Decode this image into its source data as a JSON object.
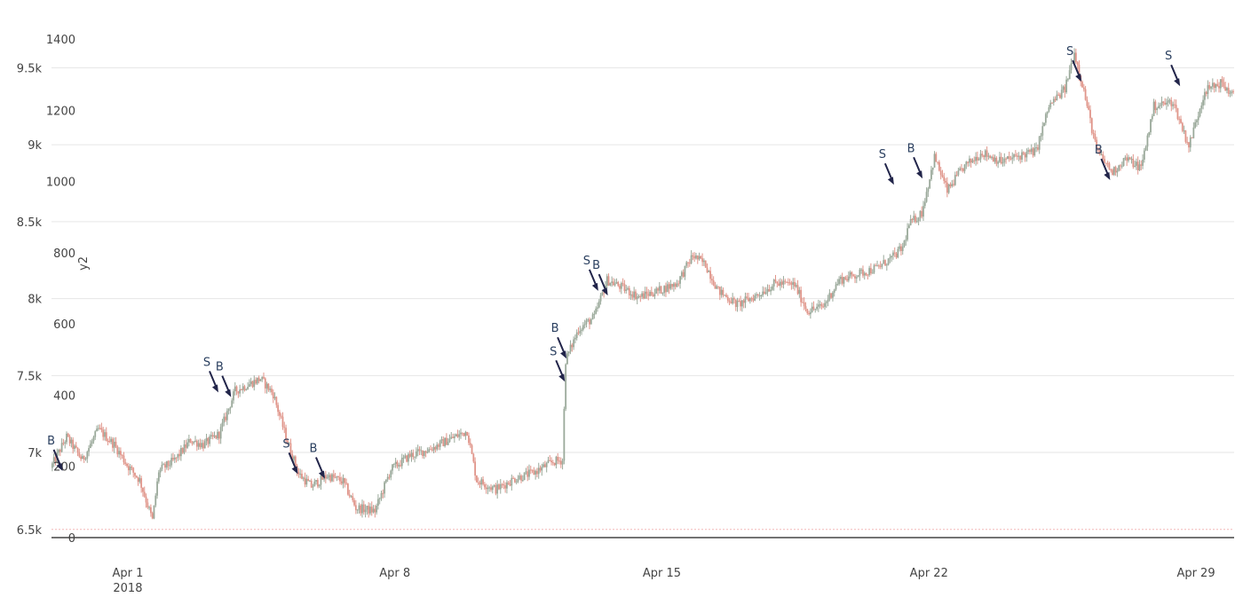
{
  "chart_data": {
    "type": "candlestick",
    "title": "",
    "colors": {
      "increasing": "#9aa99a",
      "decreasing": "#e0958a",
      "marker": "#22254a",
      "grid": "#e6e6e6",
      "baseline": "#444444",
      "reference_line": "#f4b8b8"
    },
    "x_axis": {
      "range": [
        "2018-03-30",
        "2018-04-30"
      ],
      "ticks": [
        {
          "date": "2018-04-01",
          "label": "Apr 1",
          "sublabel": "2018"
        },
        {
          "date": "2018-04-08",
          "label": "Apr 8",
          "sublabel": ""
        },
        {
          "date": "2018-04-15",
          "label": "Apr 15",
          "sublabel": ""
        },
        {
          "date": "2018-04-22",
          "label": "Apr 22",
          "sublabel": ""
        },
        {
          "date": "2018-04-29",
          "label": "Apr 29",
          "sublabel": ""
        }
      ]
    },
    "y_axis_price": {
      "range": [
        6470,
        9750
      ],
      "ticks": [
        {
          "value": 6500,
          "label": "6.5k"
        },
        {
          "value": 7000,
          "label": "7k"
        },
        {
          "value": 7500,
          "label": "7.5k"
        },
        {
          "value": 8000,
          "label": "8k"
        },
        {
          "value": 8500,
          "label": "8.5k"
        },
        {
          "value": 9000,
          "label": "9k"
        },
        {
          "value": 9500,
          "label": "9.5k"
        }
      ]
    },
    "y_axis_volume": {
      "label": "y2",
      "range": [
        0,
        1400
      ],
      "ticks": [
        {
          "value": 0,
          "label": "0"
        },
        {
          "value": 200,
          "label": "200"
        },
        {
          "value": 400,
          "label": "400"
        },
        {
          "value": 600,
          "label": "600"
        },
        {
          "value": 800,
          "label": "800"
        },
        {
          "value": 1000,
          "label": "1000"
        },
        {
          "value": 1200,
          "label": "1200"
        },
        {
          "value": 1400,
          "label": "1400"
        }
      ]
    },
    "price_path": [
      [
        "2018-03-30T00:00",
        6900
      ],
      [
        "2018-03-30T10:00",
        7100
      ],
      [
        "2018-03-30T20:00",
        6950
      ],
      [
        "2018-03-31T06:00",
        7150
      ],
      [
        "2018-03-31T16:00",
        7050
      ],
      [
        "2018-04-01T00:00",
        6920
      ],
      [
        "2018-04-01T08:00",
        6820
      ],
      [
        "2018-04-01T16:00",
        6560
      ],
      [
        "2018-04-01T20:00",
        6880
      ],
      [
        "2018-04-02T06:00",
        6950
      ],
      [
        "2018-04-02T16:00",
        7080
      ],
      [
        "2018-04-03T00:00",
        7050
      ],
      [
        "2018-04-03T10:00",
        7120
      ],
      [
        "2018-04-03T20:00",
        7400
      ],
      [
        "2018-04-04T04:00",
        7440
      ],
      [
        "2018-04-04T12:00",
        7480
      ],
      [
        "2018-04-04T20:00",
        7380
      ],
      [
        "2018-04-05T04:00",
        7100
      ],
      [
        "2018-04-05T12:00",
        6860
      ],
      [
        "2018-04-05T20:00",
        6780
      ],
      [
        "2018-04-06T06:00",
        6850
      ],
      [
        "2018-04-06T16:00",
        6810
      ],
      [
        "2018-04-07T00:00",
        6640
      ],
      [
        "2018-04-07T12:00",
        6620
      ],
      [
        "2018-04-07T22:00",
        6890
      ],
      [
        "2018-04-08T10:00",
        6980
      ],
      [
        "2018-04-08T22:00",
        7020
      ],
      [
        "2018-04-09T10:00",
        7080
      ],
      [
        "2018-04-09T22:00",
        7140
      ],
      [
        "2018-04-10T04:00",
        6820
      ],
      [
        "2018-04-10T16:00",
        6760
      ],
      [
        "2018-04-11T04:00",
        6830
      ],
      [
        "2018-04-11T16:00",
        6870
      ],
      [
        "2018-04-12T04:00",
        6940
      ],
      [
        "2018-04-12T10:00",
        6950
      ],
      [
        "2018-04-12T12:00",
        7600
      ],
      [
        "2018-04-12T20:00",
        7800
      ],
      [
        "2018-04-13T06:00",
        7880
      ],
      [
        "2018-04-13T14:00",
        8120
      ],
      [
        "2018-04-13T22:00",
        8080
      ],
      [
        "2018-04-14T10:00",
        8010
      ],
      [
        "2018-04-14T22:00",
        8050
      ],
      [
        "2018-04-15T10:00",
        8100
      ],
      [
        "2018-04-15T20:00",
        8280
      ],
      [
        "2018-04-16T04:00",
        8220
      ],
      [
        "2018-04-16T12:00",
        8050
      ],
      [
        "2018-04-17T00:00",
        7960
      ],
      [
        "2018-04-17T12:00",
        8020
      ],
      [
        "2018-04-18T00:00",
        8100
      ],
      [
        "2018-04-18T12:00",
        8090
      ],
      [
        "2018-04-18T20:00",
        7920
      ],
      [
        "2018-04-19T06:00",
        7950
      ],
      [
        "2018-04-19T16:00",
        8120
      ],
      [
        "2018-04-20T04:00",
        8160
      ],
      [
        "2018-04-20T16:00",
        8200
      ],
      [
        "2018-04-21T02:00",
        8270
      ],
      [
        "2018-04-21T08:00",
        8330
      ],
      [
        "2018-04-21T12:00",
        8480
      ],
      [
        "2018-04-21T20:00",
        8560
      ],
      [
        "2018-04-22T04:00",
        8920
      ],
      [
        "2018-04-22T12:00",
        8700
      ],
      [
        "2018-04-22T22:00",
        8850
      ],
      [
        "2018-04-23T10:00",
        8950
      ],
      [
        "2018-04-23T22:00",
        8890
      ],
      [
        "2018-04-24T10:00",
        8930
      ],
      [
        "2018-04-24T20:00",
        8960
      ],
      [
        "2018-04-25T04:00",
        9250
      ],
      [
        "2018-04-25T14:00",
        9360
      ],
      [
        "2018-04-25T20:00",
        9600
      ],
      [
        "2018-04-26T02:00",
        9350
      ],
      [
        "2018-04-26T10:00",
        8960
      ],
      [
        "2018-04-26T20:00",
        8820
      ],
      [
        "2018-04-27T04:00",
        8910
      ],
      [
        "2018-04-27T14:00",
        8850
      ],
      [
        "2018-04-27T22:00",
        9250
      ],
      [
        "2018-04-28T10:00",
        9280
      ],
      [
        "2018-04-28T20:00",
        8990
      ],
      [
        "2018-04-29T06:00",
        9350
      ],
      [
        "2018-04-29T16:00",
        9400
      ],
      [
        "2018-04-30T00:00",
        9320
      ]
    ],
    "trade_markers": [
      {
        "label": "B",
        "date": "2018-03-30T07:00",
        "price": 6880
      },
      {
        "label": "S",
        "date": "2018-04-03T09:00",
        "price": 7390
      },
      {
        "label": "B",
        "date": "2018-04-03T17:00",
        "price": 7360
      },
      {
        "label": "S",
        "date": "2018-04-05T11:00",
        "price": 6860
      },
      {
        "label": "B",
        "date": "2018-04-06T04:00",
        "price": 6830
      },
      {
        "label": "S",
        "date": "2018-04-12T11:00",
        "price": 7460
      },
      {
        "label": "B",
        "date": "2018-04-12T12:00",
        "price": 7610
      },
      {
        "label": "S",
        "date": "2018-04-13T08:00",
        "price": 8050
      },
      {
        "label": "B",
        "date": "2018-04-13T14:00",
        "price": 8020
      },
      {
        "label": "S",
        "date": "2018-04-21T02:00",
        "price": 8740
      },
      {
        "label": "B",
        "date": "2018-04-21T20:00",
        "price": 8780
      },
      {
        "label": "S",
        "date": "2018-04-26T00:00",
        "price": 9410
      },
      {
        "label": "B",
        "date": "2018-04-26T18:00",
        "price": 8770
      },
      {
        "label": "S",
        "date": "2018-04-28T14:00",
        "price": 9380
      }
    ]
  }
}
